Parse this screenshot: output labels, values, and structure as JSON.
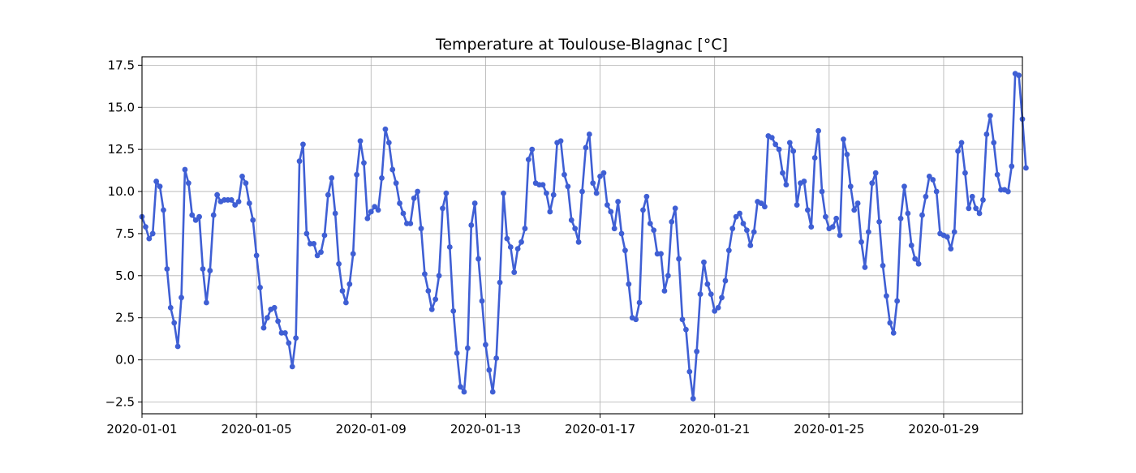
{
  "chart_data": {
    "type": "line",
    "title": "Temperature at Toulouse-Blagnac [°C]",
    "xlabel": "",
    "ylabel": "",
    "x_start": "2020-01-01",
    "sample_interval_hours": 3,
    "xlim": [
      "2020-01-01 00:00",
      "2020-01-31 18:00"
    ],
    "ylim": [
      -3.2,
      18.0
    ],
    "yticks": [
      -2.5,
      0.0,
      2.5,
      5.0,
      7.5,
      10.0,
      12.5,
      15.0,
      17.5
    ],
    "xticks": [
      "2020-01-01",
      "2020-01-05",
      "2020-01-09",
      "2020-01-13",
      "2020-01-17",
      "2020-01-21",
      "2020-01-25",
      "2020-01-29"
    ],
    "grid": true,
    "marker": "circle",
    "color": "#3f5fd4",
    "series": [
      {
        "values": [
          8.5,
          7.9,
          7.2,
          7.5,
          10.6,
          10.3,
          8.9,
          5.4,
          3.1,
          2.2,
          0.8,
          3.7,
          11.3,
          10.5,
          8.6,
          8.3,
          8.5,
          5.4,
          3.4,
          5.3,
          8.6,
          9.8,
          9.4,
          9.5,
          9.5,
          9.5,
          9.2,
          9.4,
          10.9,
          10.5,
          9.3,
          8.3,
          6.2,
          4.3,
          1.9,
          2.5,
          3.0,
          3.1,
          2.3,
          1.6,
          1.6,
          1.0,
          -0.4,
          1.3,
          11.8,
          12.8,
          7.5,
          6.9,
          6.9,
          6.2,
          6.4,
          7.4,
          9.8,
          10.8,
          8.7,
          5.7,
          4.1,
          3.4,
          4.5,
          6.3,
          11.0,
          13.0,
          11.7,
          8.4,
          8.8,
          9.1,
          8.9,
          10.8,
          13.7,
          12.9,
          11.3,
          10.5,
          9.3,
          8.7,
          8.1,
          8.1,
          9.6,
          10.0,
          7.8,
          5.1,
          4.1,
          3.0,
          3.6,
          5.0,
          9.0,
          9.9,
          6.7,
          2.9,
          0.4,
          -1.6,
          -1.9,
          0.7,
          8.0,
          9.3,
          6.0,
          3.5,
          0.9,
          -0.6,
          -1.9,
          0.1,
          4.6,
          9.9,
          7.2,
          6.7,
          5.2,
          6.6,
          7.0,
          7.8,
          11.9,
          12.5,
          10.5,
          10.4,
          10.4,
          9.9,
          8.8,
          9.8,
          12.9,
          13.0,
          11.0,
          10.3,
          8.3,
          7.8,
          7.0,
          10.0,
          12.6,
          13.4,
          10.5,
          9.9,
          10.9,
          11.1,
          9.2,
          8.8,
          7.8,
          9.4,
          7.5,
          6.5,
          4.5,
          2.5,
          2.4,
          3.4,
          8.9,
          9.7,
          8.1,
          7.7,
          6.3,
          6.3,
          4.1,
          5.0,
          8.2,
          9.0,
          6.0,
          2.4,
          1.8,
          -0.7,
          -2.3,
          0.5,
          3.9,
          5.8,
          4.5,
          3.9,
          2.9,
          3.1,
          3.7,
          4.7,
          6.5,
          7.8,
          8.5,
          8.7,
          8.1,
          7.7,
          6.8,
          7.6,
          9.4,
          9.3,
          9.1,
          13.3,
          13.2,
          12.8,
          12.5,
          11.1,
          10.4,
          12.9,
          12.4,
          9.2,
          10.5,
          10.6,
          8.9,
          7.9,
          12.0,
          13.6,
          10.0,
          8.5,
          7.8,
          7.9,
          8.4,
          7.4,
          13.1,
          12.2,
          10.3,
          8.9,
          9.3,
          7.0,
          5.5,
          7.6,
          10.5,
          11.1,
          8.2,
          5.6,
          3.8,
          2.2,
          1.6,
          3.5,
          8.4,
          10.3,
          8.7,
          6.8,
          6.0,
          5.7,
          8.6,
          9.7,
          10.9,
          10.7,
          10.0,
          7.5,
          7.4,
          7.3,
          6.6,
          7.6,
          12.4,
          12.9,
          11.1,
          9.0,
          9.7,
          9.0,
          8.7,
          9.5,
          13.4,
          14.5,
          12.9,
          11.0,
          10.1,
          10.1,
          10.0,
          11.5,
          17.0,
          16.9,
          14.3,
          11.4
        ]
      }
    ]
  }
}
